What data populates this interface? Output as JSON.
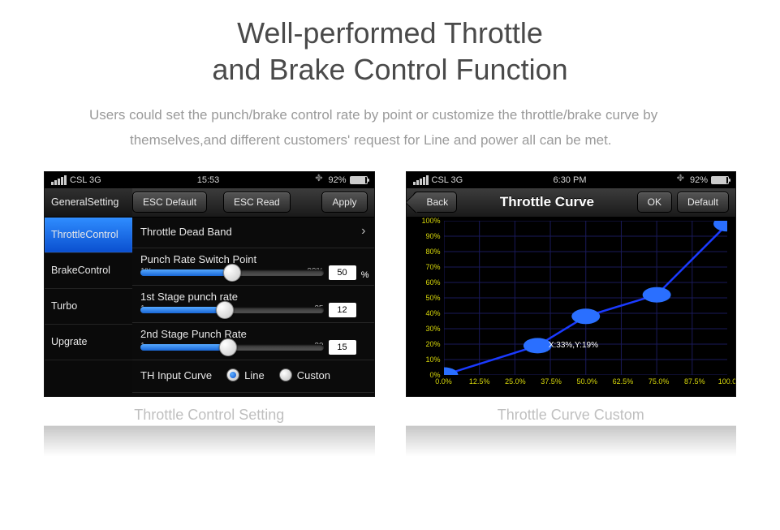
{
  "page": {
    "title_line1": "Well-performed Throttle",
    "title_line2": "and Brake Control Function",
    "desc_line1": "Users could set the punch/brake control rate by point or customize the throttle/brake curve by",
    "desc_line2": "themselves,and different customers' request for Line and power all can be met."
  },
  "captions": {
    "left": "Throttle Control Setting",
    "right": "Throttle Curve Custom"
  },
  "status": {
    "carrier_left": "CSL  3G",
    "time_left": "15:53",
    "carrier_right": "CSL  3G",
    "time_right": "6:30 PM",
    "battery_pct": "92%",
    "bt_glyph": "࿇"
  },
  "left": {
    "buttons": {
      "esc_default": "ESC Default",
      "esc_read": "ESC Read",
      "apply": "Apply"
    },
    "tabs": [
      "GeneralSetting",
      "ThrottleControl",
      "BrakeControl",
      "Turbo",
      "Upgrate"
    ],
    "active_tab_index": 1,
    "rows": {
      "dead_band": "Throttle Dead Band",
      "punch_switch": {
        "label": "Punch Rate Switch Point",
        "min": "1%",
        "max": "99%",
        "value": 50,
        "value_str": "50",
        "knob_pct": 50,
        "suffix": "%"
      },
      "stage1": {
        "label": "1st Stage punch rate",
        "min": "1",
        "max": "25",
        "value": 12,
        "value_str": "12",
        "knob_pct": 46
      },
      "stage2": {
        "label": "2nd Stage Punch Rate",
        "min": "1",
        "max": "30",
        "value": 15,
        "value_str": "15",
        "knob_pct": 48
      },
      "curve": {
        "label": "TH Input Curve",
        "opt1": "Line",
        "opt2": "Custon",
        "selected": 0
      }
    }
  },
  "right": {
    "back": "Back",
    "title": "Throttle Curve",
    "ok": "OK",
    "default": "Default",
    "y_ticks": [
      "100%",
      "90%",
      "80%",
      "70%",
      "60%",
      "50%",
      "40%",
      "30%",
      "20%",
      "10%",
      "0%"
    ],
    "x_ticks": [
      "0.0%",
      "12.5%",
      "25.0%",
      "37.5%",
      "50.0%",
      "62.5%",
      "75.0%",
      "87.5%",
      "100.0%"
    ],
    "points_pct": [
      [
        0,
        0
      ],
      [
        33,
        19
      ],
      [
        50,
        38
      ],
      [
        75,
        52
      ],
      [
        100,
        98
      ]
    ],
    "coord_label": "X:33%,Y:19%",
    "colors": {
      "line": "#1a3aff",
      "tick": "#d8d80a",
      "grid": "#1a1a5a"
    }
  }
}
